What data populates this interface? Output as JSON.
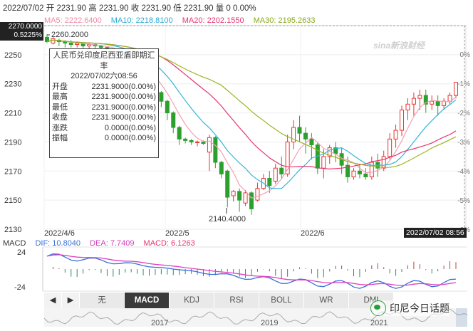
{
  "header": {
    "date": "2022/07/02",
    "open_label": "开",
    "open": "2231.90",
    "high_label": "高",
    "high": "2231.90",
    "close_label": "收",
    "close": "2231.90",
    "low_label": "低",
    "low": "2231.90",
    "volume_label": "量",
    "volume": "0",
    "change": "0.00%"
  },
  "ma": {
    "ma5": "MA5: 2222.6400",
    "ma10": "MA10: 2218.8100",
    "ma20": "MA20: 2202.1550",
    "ma30": "MA30: 2195.2633",
    "colors": {
      "ma5": "#f4a0b4",
      "ma10": "#33b5d8",
      "ma20": "#e8336e",
      "ma30": "#9ab520"
    }
  },
  "price_box": {
    "price": "2270.0000",
    "pct": "0.5225%"
  },
  "y_ticks": [
    "2250",
    "2230",
    "2210",
    "2190",
    "2170",
    "2150",
    "2130"
  ],
  "pct_ticks": [
    "0%",
    "-1%",
    "-2%",
    "-3%",
    "-4%",
    "-5%",
    "-6%"
  ],
  "x_labels": [
    "2022/4/6",
    "2022/5",
    "2022/6"
  ],
  "annotations": {
    "high": "2260.2000",
    "low": "2140.4000"
  },
  "tooltip": {
    "title": "人民币兑印度尼西亚盾即期汇率",
    "date": "2022/07/02六08:56",
    "rows": [
      {
        "k": "开盘",
        "v": "2231.9000(0.00%)"
      },
      {
        "k": "最高",
        "v": "2231.9000(0.00%)"
      },
      {
        "k": "最低",
        "v": "2231.9000(0.00%)"
      },
      {
        "k": "收盘",
        "v": "2231.9000(0.00%)"
      },
      {
        "k": "涨跌",
        "v": "0.0000(0.00%)"
      },
      {
        "k": "振幅",
        "v": "0.0000(0.00%)"
      }
    ]
  },
  "cursor_date": "2022/07/02 08:56",
  "macd": {
    "title": "MACD",
    "dif": "DIF: 10.8040",
    "dea": "DEA: 7.7409",
    "macd": "MACD: 6.1263",
    "y_top": "24",
    "y_bottom": "-24",
    "colors": {
      "dif": "#3a6fd8",
      "dea": "#e040c0",
      "macd": "#e8336e"
    }
  },
  "tabs": [
    {
      "label": "◀",
      "kind": "nav"
    },
    {
      "label": "▶",
      "kind": "nav"
    },
    {
      "label": "无",
      "kind": "tab"
    },
    {
      "label": "MACD",
      "kind": "active"
    },
    {
      "label": "KDJ",
      "kind": "tab"
    },
    {
      "label": "RSI",
      "kind": "tab"
    },
    {
      "label": "BOLL",
      "kind": "tab"
    },
    {
      "label": "WR",
      "kind": "tab"
    },
    {
      "label": "DMI",
      "kind": "tab"
    }
  ],
  "overview_years": [
    "2017",
    "2019",
    "2021"
  ],
  "watermark": "sina新浪财经",
  "wechat": "印尼今日话题",
  "chart_data": {
    "type": "candlestick",
    "y_range": [
      2130,
      2270
    ],
    "candles": [
      [
        2262,
        2264,
        2259,
        2258
      ],
      [
        2258,
        2262,
        2261,
        2257
      ],
      [
        2260,
        2261,
        2259,
        2256
      ],
      [
        2259,
        2260,
        2258,
        2255
      ],
      [
        2258,
        2260,
        2257,
        2255
      ],
      [
        2257,
        2259,
        2258,
        2255
      ],
      [
        2258,
        2258,
        2256,
        2253
      ],
      [
        2256,
        2258,
        2257,
        2254
      ],
      [
        2257,
        2258,
        2256,
        2253
      ],
      [
        2256,
        2257,
        2255,
        2253
      ],
      [
        2255,
        2256,
        2254,
        2251
      ],
      [
        2254,
        2255,
        2252,
        2250
      ],
      [
        2252,
        2253,
        2250,
        2248
      ],
      [
        2250,
        2251,
        2247,
        2245
      ],
      [
        2247,
        2248,
        2244,
        2241
      ],
      [
        2244,
        2245,
        2240,
        2236
      ],
      [
        2240,
        2241,
        2236,
        2232
      ],
      [
        2236,
        2237,
        2230,
        2226
      ],
      [
        2230,
        2231,
        2224,
        2220
      ],
      [
        2224,
        2225,
        2218,
        2214
      ],
      [
        2218,
        2219,
        2210,
        2205
      ],
      [
        2210,
        2211,
        2200,
        2196
      ],
      [
        2200,
        2201,
        2192,
        2188
      ],
      [
        2192,
        2193,
        2191,
        2189
      ],
      [
        2191,
        2192,
        2190,
        2188
      ],
      [
        2190,
        2191,
        2190,
        2187
      ],
      [
        2190,
        2191,
        2189,
        2188
      ],
      [
        2183,
        2195,
        2193,
        2170
      ],
      [
        2193,
        2194,
        2176,
        2172
      ],
      [
        2176,
        2177,
        2168,
        2165
      ],
      [
        2170,
        2171,
        2152,
        2145
      ],
      [
        2153,
        2157,
        2156,
        2149
      ],
      [
        2156,
        2158,
        2150,
        2142
      ],
      [
        2148,
        2157,
        2155,
        2146
      ],
      [
        2155,
        2156,
        2144,
        2140
      ],
      [
        2150,
        2162,
        2158,
        2149
      ],
      [
        2158,
        2168,
        2165,
        2157
      ],
      [
        2165,
        2170,
        2160,
        2155
      ],
      [
        2163,
        2175,
        2172,
        2161
      ],
      [
        2172,
        2180,
        2168,
        2165
      ],
      [
        2168,
        2195,
        2190,
        2166
      ],
      [
        2190,
        2205,
        2200,
        2185
      ],
      [
        2200,
        2208,
        2196,
        2190
      ],
      [
        2196,
        2200,
        2192,
        2182
      ],
      [
        2192,
        2196,
        2188,
        2178
      ],
      [
        2188,
        2190,
        2172,
        2168
      ],
      [
        2172,
        2185,
        2180,
        2165
      ],
      [
        2180,
        2188,
        2186,
        2175
      ],
      [
        2186,
        2190,
        2182,
        2176
      ],
      [
        2182,
        2186,
        2174,
        2168
      ],
      [
        2174,
        2180,
        2166,
        2162
      ],
      [
        2166,
        2172,
        2170,
        2164
      ],
      [
        2170,
        2175,
        2168,
        2165
      ],
      [
        2168,
        2172,
        2166,
        2164
      ],
      [
        2166,
        2180,
        2176,
        2164
      ],
      [
        2176,
        2182,
        2172,
        2166
      ],
      [
        2172,
        2184,
        2180,
        2170
      ],
      [
        2180,
        2196,
        2192,
        2178
      ],
      [
        2192,
        2202,
        2198,
        2186
      ],
      [
        2198,
        2215,
        2212,
        2194
      ],
      [
        2212,
        2220,
        2216,
        2205
      ],
      [
        2216,
        2224,
        2220,
        2208
      ],
      [
        2220,
        2226,
        2222,
        2212
      ],
      [
        2222,
        2226,
        2216,
        2210
      ],
      [
        2216,
        2222,
        2218,
        2212
      ],
      [
        2218,
        2222,
        2215,
        2208
      ],
      [
        2215,
        2220,
        2218,
        2212
      ],
      [
        2218,
        2224,
        2222,
        2216
      ],
      [
        2222,
        2231,
        2231,
        2220
      ]
    ]
  }
}
